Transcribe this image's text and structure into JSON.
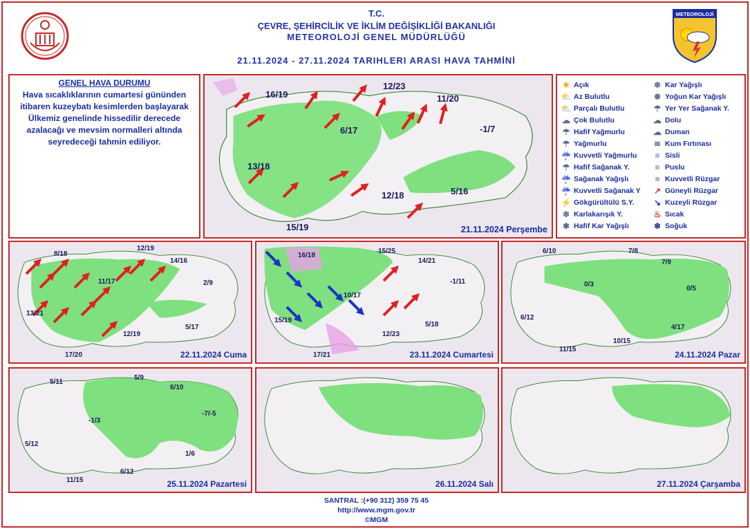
{
  "header": {
    "line1": "T.C.",
    "line2": "ÇEVRE, ŞEHİRCİLİK VE İKLİM DEĞİŞİKLİĞİ BAKANLIĞI",
    "line3": "METEOROLOJİ GENEL MÜDÜRLÜĞÜ",
    "period": "21.11.2024 - 27.11.2024 TARIHLERI ARASI HAVA TAHMİNİ",
    "logo_text": "METEOROLOJİ"
  },
  "general": {
    "title": "GENEL HAVA DURUMU",
    "text": "Hava sıcaklıklarının cumartesi gününden itibaren kuzeybatı kesimlerden başlayarak Ülkemiz genelinde hissedilir derecede azalacağı ve mevsim normalleri altında seyredeceği tahmin ediliyor."
  },
  "legend": {
    "col1": [
      {
        "icon": "sun-icon",
        "label": "Açık"
      },
      {
        "icon": "few-clouds-icon",
        "label": "Az Bulutlu"
      },
      {
        "icon": "partly-cloudy-icon",
        "label": "Parçalı Bulutlu"
      },
      {
        "icon": "cloudy-icon",
        "label": "Çok Bulutlu"
      },
      {
        "icon": "light-rain-icon",
        "label": "Hafif Yağmurlu"
      },
      {
        "icon": "rain-icon",
        "label": "Yağmurlu"
      },
      {
        "icon": "heavy-rain-icon",
        "label": "Kuvvetli Yağmurlu"
      },
      {
        "icon": "light-shower-icon",
        "label": "Hafif Sağanak Y."
      },
      {
        "icon": "shower-icon",
        "label": "Sağanak Yağışlı"
      },
      {
        "icon": "heavy-shower-icon",
        "label": "Kuvvetli Sağanak Y"
      },
      {
        "icon": "thunder-shower-icon",
        "label": "Gökgürültülü S.Y."
      },
      {
        "icon": "sleet-icon",
        "label": "Karlakarışık Y."
      },
      {
        "icon": "light-snow-icon",
        "label": "Hafif Kar Yağışlı"
      }
    ],
    "col2": [
      {
        "icon": "snow-icon",
        "label": "Kar Yağışlı"
      },
      {
        "icon": "heavy-snow-icon",
        "label": "Yoğun Kar Yağışlı"
      },
      {
        "icon": "local-shower-icon",
        "label": "Yer Yer Sağanak Y."
      },
      {
        "icon": "hail-icon",
        "label": "Dolu"
      },
      {
        "icon": "smoke-icon",
        "label": "Duman"
      },
      {
        "icon": "sandstorm-icon",
        "label": "Kum Fırtınası"
      },
      {
        "icon": "fog-icon",
        "label": "Sisli"
      },
      {
        "icon": "mist-icon",
        "label": "Puslu"
      },
      {
        "icon": "strong-wind-icon",
        "label": "Kuvvetli Rüzgar"
      },
      {
        "icon": "south-wind-icon",
        "label": "Güneyli Rüzgar"
      },
      {
        "icon": "north-wind-icon",
        "label": "Kuzeyli Rüzgar"
      },
      {
        "icon": "hot-icon",
        "label": "Sıcak"
      },
      {
        "icon": "cold-icon",
        "label": "Soğuk"
      }
    ]
  },
  "maps": [
    {
      "date": "21.11.2024 Perşembe",
      "temps": [
        "16/19",
        "12/23",
        "11/20",
        "6/17",
        "-1/7",
        "13/18",
        "12/18",
        "5/16",
        "15/19"
      ]
    },
    {
      "date": "22.11.2024 Cuma",
      "temps": [
        "8/18",
        "12/19",
        "14/16",
        "11/17",
        "2/9",
        "13/21",
        "5/17",
        "12/19",
        "17/20"
      ]
    },
    {
      "date": "23.11.2024 Cumartesi",
      "temps": [
        "16/18",
        "15/25",
        "14/21",
        "-1/11",
        "10/17",
        "15/19",
        "5/18",
        "12/23",
        "17/21"
      ]
    },
    {
      "date": "24.11.2024 Pazar",
      "temps": [
        "6/10",
        "7/8",
        "7/9",
        "0/3",
        "0/5",
        "6/12",
        "4/17",
        "10/15",
        "11/15"
      ]
    },
    {
      "date": "25.11.2024 Pazartesi",
      "temps": [
        "5/11",
        "5/9",
        "6/10",
        "-1/3",
        "-7/-5",
        "5/12",
        "1/6",
        "6/12",
        "11/15"
      ]
    },
    {
      "date": "26.11.2024 Salı",
      "temps": []
    },
    {
      "date": "27.11.2024 Çarşamba",
      "temps": []
    }
  ],
  "footer": {
    "phone": "SANTRAL :(+90 312) 359 75 45",
    "url": "http://www.mgm.gov.tr",
    "copy": "©MGM"
  },
  "colors": {
    "accent": "#c62828",
    "text": "#1a2ea0",
    "green": "#7ee07e",
    "land": "#f2f0f2",
    "sea": "#ece7ee"
  }
}
